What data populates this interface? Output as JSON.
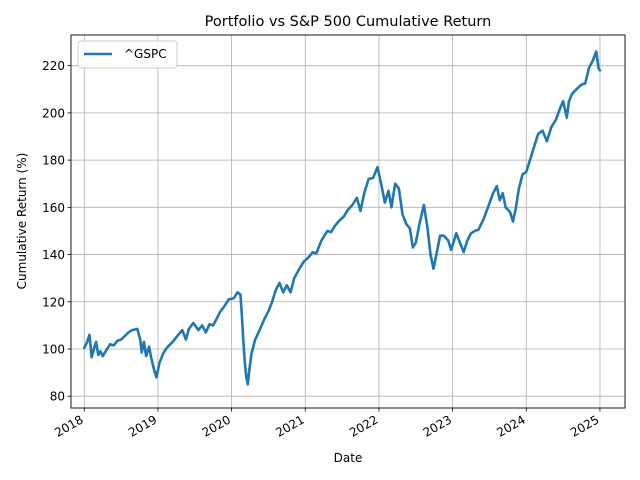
{
  "chart_data": {
    "type": "line",
    "title": "Portfolio vs S&P 500 Cumulative Return",
    "xlabel": "Date",
    "ylabel": "Cumulative Return (%)",
    "xlim": [
      2017.82,
      2025.34
    ],
    "ylim": [
      75,
      233
    ],
    "x_ticks": [
      "2018",
      "2019",
      "2020",
      "2021",
      "2022",
      "2023",
      "2024",
      "2025"
    ],
    "y_ticks": [
      80,
      100,
      120,
      140,
      160,
      180,
      200,
      220
    ],
    "grid": true,
    "legend_position": "top-left",
    "series": [
      {
        "name": "^GSPC",
        "color": "#1f77b4",
        "points": [
          [
            2018.0,
            100.5
          ],
          [
            2018.04,
            103.0
          ],
          [
            2018.07,
            106.0
          ],
          [
            2018.09,
            100.0
          ],
          [
            2018.1,
            96.5
          ],
          [
            2018.13,
            100.0
          ],
          [
            2018.16,
            103.0
          ],
          [
            2018.19,
            97.5
          ],
          [
            2018.22,
            99.0
          ],
          [
            2018.25,
            97.0
          ],
          [
            2018.3,
            99.5
          ],
          [
            2018.35,
            102.0
          ],
          [
            2018.4,
            101.5
          ],
          [
            2018.45,
            103.5
          ],
          [
            2018.5,
            104.0
          ],
          [
            2018.55,
            105.5
          ],
          [
            2018.6,
            107.0
          ],
          [
            2018.65,
            108.0
          ],
          [
            2018.72,
            108.5
          ],
          [
            2018.76,
            104.0
          ],
          [
            2018.78,
            98.5
          ],
          [
            2018.81,
            103.0
          ],
          [
            2018.84,
            97.0
          ],
          [
            2018.88,
            101.0
          ],
          [
            2018.91,
            96.0
          ],
          [
            2018.95,
            91.0
          ],
          [
            2018.98,
            88.0
          ],
          [
            2019.02,
            94.0
          ],
          [
            2019.07,
            98.0
          ],
          [
            2019.12,
            100.5
          ],
          [
            2019.2,
            103.0
          ],
          [
            2019.25,
            105.0
          ],
          [
            2019.33,
            108.0
          ],
          [
            2019.38,
            104.0
          ],
          [
            2019.42,
            108.5
          ],
          [
            2019.48,
            111.0
          ],
          [
            2019.55,
            108.0
          ],
          [
            2019.6,
            110.0
          ],
          [
            2019.65,
            107.0
          ],
          [
            2019.7,
            110.5
          ],
          [
            2019.75,
            110.0
          ],
          [
            2019.8,
            113.0
          ],
          [
            2019.85,
            116.0
          ],
          [
            2019.9,
            118.0
          ],
          [
            2019.96,
            121.0
          ],
          [
            2020.03,
            121.5
          ],
          [
            2020.08,
            124.0
          ],
          [
            2020.12,
            123.0
          ],
          [
            2020.14,
            114.0
          ],
          [
            2020.16,
            103.0
          ],
          [
            2020.18,
            94.0
          ],
          [
            2020.2,
            88.0
          ],
          [
            2020.22,
            85.0
          ],
          [
            2020.24,
            91.0
          ],
          [
            2020.27,
            98.0
          ],
          [
            2020.32,
            104.0
          ],
          [
            2020.38,
            108.0
          ],
          [
            2020.45,
            113.0
          ],
          [
            2020.5,
            116.0
          ],
          [
            2020.55,
            120.0
          ],
          [
            2020.6,
            125.0
          ],
          [
            2020.65,
            128.0
          ],
          [
            2020.7,
            124.0
          ],
          [
            2020.75,
            127.0
          ],
          [
            2020.8,
            124.0
          ],
          [
            2020.85,
            130.0
          ],
          [
            2020.92,
            134.0
          ],
          [
            2020.98,
            137.0
          ],
          [
            2021.05,
            139.0
          ],
          [
            2021.1,
            141.0
          ],
          [
            2021.15,
            140.5
          ],
          [
            2021.22,
            146.0
          ],
          [
            2021.3,
            150.0
          ],
          [
            2021.35,
            149.5
          ],
          [
            2021.4,
            152.0
          ],
          [
            2021.45,
            154.0
          ],
          [
            2021.52,
            156.0
          ],
          [
            2021.58,
            159.0
          ],
          [
            2021.64,
            161.0
          ],
          [
            2021.7,
            164.0
          ],
          [
            2021.75,
            158.5
          ],
          [
            2021.8,
            166.0
          ],
          [
            2021.86,
            172.0
          ],
          [
            2021.92,
            172.5
          ],
          [
            2021.98,
            177.0
          ],
          [
            2022.03,
            170.0
          ],
          [
            2022.08,
            162.0
          ],
          [
            2022.13,
            167.0
          ],
          [
            2022.17,
            160.0
          ],
          [
            2022.22,
            170.0
          ],
          [
            2022.27,
            168.0
          ],
          [
            2022.32,
            157.0
          ],
          [
            2022.37,
            153.0
          ],
          [
            2022.42,
            151.0
          ],
          [
            2022.46,
            143.0
          ],
          [
            2022.5,
            145.0
          ],
          [
            2022.55,
            153.0
          ],
          [
            2022.61,
            161.0
          ],
          [
            2022.66,
            151.0
          ],
          [
            2022.7,
            140.0
          ],
          [
            2022.74,
            134.0
          ],
          [
            2022.78,
            140.0
          ],
          [
            2022.83,
            148.0
          ],
          [
            2022.88,
            148.0
          ],
          [
            2022.94,
            146.0
          ],
          [
            2022.98,
            142.0
          ],
          [
            2023.05,
            149.0
          ],
          [
            2023.1,
            145.0
          ],
          [
            2023.15,
            141.0
          ],
          [
            2023.2,
            146.0
          ],
          [
            2023.25,
            149.0
          ],
          [
            2023.3,
            150.0
          ],
          [
            2023.35,
            150.5
          ],
          [
            2023.42,
            155.0
          ],
          [
            2023.48,
            160.0
          ],
          [
            2023.55,
            166.0
          ],
          [
            2023.6,
            169.0
          ],
          [
            2023.64,
            163.0
          ],
          [
            2023.68,
            166.0
          ],
          [
            2023.72,
            160.0
          ],
          [
            2023.78,
            158.0
          ],
          [
            2023.82,
            154.0
          ],
          [
            2023.86,
            160.0
          ],
          [
            2023.9,
            168.0
          ],
          [
            2023.95,
            174.0
          ],
          [
            2024.0,
            175.0
          ],
          [
            2024.05,
            180.0
          ],
          [
            2024.1,
            185.0
          ],
          [
            2024.16,
            191.0
          ],
          [
            2024.22,
            192.5
          ],
          [
            2024.28,
            188.0
          ],
          [
            2024.34,
            194.0
          ],
          [
            2024.4,
            197.0
          ],
          [
            2024.46,
            202.0
          ],
          [
            2024.5,
            205.0
          ],
          [
            2024.55,
            198.0
          ],
          [
            2024.58,
            205.0
          ],
          [
            2024.62,
            208.0
          ],
          [
            2024.68,
            210.0
          ],
          [
            2024.75,
            212.0
          ],
          [
            2024.8,
            212.5
          ],
          [
            2024.85,
            219.0
          ],
          [
            2024.9,
            222.0
          ],
          [
            2024.95,
            226.0
          ],
          [
            2024.98,
            219.0
          ],
          [
            2025.0,
            218.0
          ]
        ]
      }
    ]
  }
}
